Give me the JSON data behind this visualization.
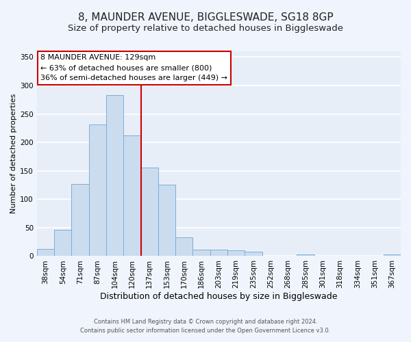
{
  "title": "8, MAUNDER AVENUE, BIGGLESWADE, SG18 8GP",
  "subtitle": "Size of property relative to detached houses in Biggleswade",
  "xlabel": "Distribution of detached houses by size in Biggleswade",
  "ylabel": "Number of detached properties",
  "bar_labels": [
    "38sqm",
    "54sqm",
    "71sqm",
    "87sqm",
    "104sqm",
    "120sqm",
    "137sqm",
    "153sqm",
    "170sqm",
    "186sqm",
    "203sqm",
    "219sqm",
    "235sqm",
    "252sqm",
    "268sqm",
    "285sqm",
    "301sqm",
    "318sqm",
    "334sqm",
    "351sqm",
    "367sqm"
  ],
  "bar_values": [
    13,
    46,
    127,
    231,
    283,
    212,
    156,
    125,
    33,
    11,
    11,
    10,
    8,
    0,
    0,
    3,
    0,
    0,
    0,
    0,
    3
  ],
  "bar_color": "#ccdcef",
  "bar_edge_color": "#7aaed6",
  "ylim": [
    0,
    360
  ],
  "yticks": [
    0,
    50,
    100,
    150,
    200,
    250,
    300,
    350
  ],
  "vline_x": 5.5,
  "vline_color": "#cc0000",
  "annotation_title": "8 MAUNDER AVENUE: 129sqm",
  "annotation_line1": "← 63% of detached houses are smaller (800)",
  "annotation_line2": "36% of semi-detached houses are larger (449) →",
  "annotation_box_facecolor": "#ffffff",
  "annotation_box_edgecolor": "#cc0000",
  "footer_line1": "Contains HM Land Registry data © Crown copyright and database right 2024.",
  "footer_line2": "Contains public sector information licensed under the Open Government Licence v3.0.",
  "fig_facecolor": "#f0f4fc",
  "ax_facecolor": "#e8eef8",
  "grid_color": "#ffffff",
  "title_fontsize": 11,
  "subtitle_fontsize": 9.5,
  "xlabel_fontsize": 9,
  "ylabel_fontsize": 8,
  "tick_fontsize": 7.5,
  "annotation_fontsize": 8
}
